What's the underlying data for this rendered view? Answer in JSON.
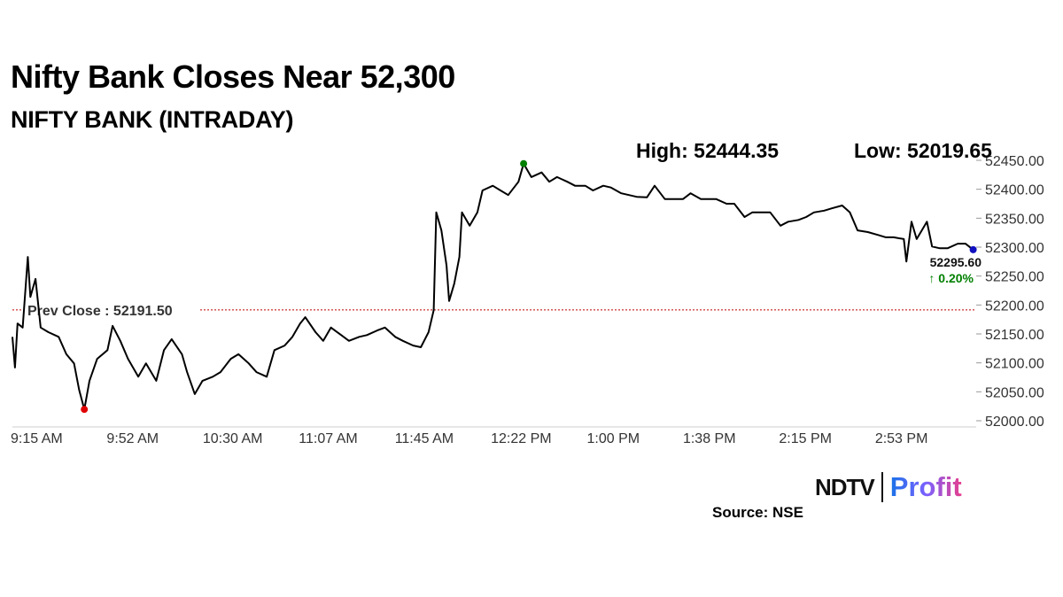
{
  "header": {
    "title": "Nifty Bank Closes Near 52,300",
    "subtitle": "NIFTY BANK (INTRADAY)",
    "high_label": "High: 52444.35",
    "low_label": "Low: 52019.65"
  },
  "footer": {
    "source": "Source: NSE",
    "logo_text_1": "NDTV",
    "logo_text_2": "Profit"
  },
  "chart_data": {
    "type": "line",
    "ylim": [
      52000,
      52450
    ],
    "y_ticks": [
      "52000.00",
      "52050.00",
      "52100.00",
      "52150.00",
      "52200.00",
      "52250.00",
      "52300.00",
      "52350.00",
      "52400.00",
      "52450.00"
    ],
    "x_ticks": [
      "9:15 AM",
      "9:52 AM",
      "10:30 AM",
      "11:07 AM",
      "11:45 AM",
      "12:22 PM",
      "1:00 PM",
      "1:38 PM",
      "2:15 PM",
      "2:53 PM"
    ],
    "grid": false,
    "y_axis_position": "right",
    "line_color": "#000000",
    "prev_close": {
      "value": 52191.5,
      "label": "Prev Close : 52191.50",
      "color": "#c00000"
    },
    "high": {
      "time": "12:34",
      "value": 52444.35,
      "color": "#008000"
    },
    "low": {
      "time": "9:43",
      "value": 52019.65,
      "color": "#e00000"
    },
    "last": {
      "value": 52295.6,
      "label": "52295.60",
      "change": "0.20%",
      "change_color": "#008000",
      "marker_color": "#1010c0"
    },
    "points": [
      [
        "9:15",
        52145
      ],
      [
        "9:16",
        52092
      ],
      [
        "9:17",
        52168
      ],
      [
        "9:19",
        52161
      ],
      [
        "9:21",
        52283
      ],
      [
        "9:22",
        52214
      ],
      [
        "9:24",
        52245
      ],
      [
        "9:26",
        52161
      ],
      [
        "9:29",
        52153
      ],
      [
        "9:33",
        52145
      ],
      [
        "9:36",
        52115
      ],
      [
        "9:39",
        52099
      ],
      [
        "9:41",
        52053
      ],
      [
        "9:43",
        52019.65
      ],
      [
        "9:45",
        52069
      ],
      [
        "9:48",
        52107
      ],
      [
        "9:52",
        52122
      ],
      [
        "9:54",
        52164
      ],
      [
        "9:57",
        52138
      ],
      [
        "10:00",
        52107
      ],
      [
        "10:04",
        52076
      ],
      [
        "10:07",
        52099
      ],
      [
        "10:11",
        52069
      ],
      [
        "10:14",
        52122
      ],
      [
        "10:17",
        52141
      ],
      [
        "10:21",
        52115
      ],
      [
        "10:23",
        52084
      ],
      [
        "10:26",
        52046
      ],
      [
        "10:29",
        52069
      ],
      [
        "10:33",
        52076
      ],
      [
        "10:36",
        52084
      ],
      [
        "10:40",
        52107
      ],
      [
        "10:43",
        52115
      ],
      [
        "10:47",
        52099
      ],
      [
        "10:50",
        52084
      ],
      [
        "10:54",
        52076
      ],
      [
        "10:57",
        52122
      ],
      [
        "11:01",
        52130
      ],
      [
        "11:04",
        52145
      ],
      [
        "11:07",
        52168
      ],
      [
        "11:09",
        52179
      ],
      [
        "11:13",
        52153
      ],
      [
        "11:16",
        52138
      ],
      [
        "11:19",
        52161
      ],
      [
        "11:23",
        52148
      ],
      [
        "11:26",
        52138
      ],
      [
        "11:30",
        52145
      ],
      [
        "11:33",
        52148
      ],
      [
        "11:37",
        52156
      ],
      [
        "11:40",
        52161
      ],
      [
        "11:44",
        52145
      ],
      [
        "11:47",
        52138
      ],
      [
        "11:51",
        52130
      ],
      [
        "11:54",
        52127
      ],
      [
        "11:57",
        52153
      ],
      [
        "11:59",
        52191
      ],
      [
        "12:00",
        52360
      ],
      [
        "12:02",
        52329
      ],
      [
        "12:04",
        52268
      ],
      [
        "12:05",
        52207
      ],
      [
        "12:07",
        52237
      ],
      [
        "12:09",
        52283
      ],
      [
        "12:10",
        52360
      ],
      [
        "12:13",
        52337
      ],
      [
        "12:16",
        52360
      ],
      [
        "12:18",
        52398
      ],
      [
        "12:22",
        52406
      ],
      [
        "12:25",
        52398
      ],
      [
        "12:28",
        52390
      ],
      [
        "12:32",
        52413
      ],
      [
        "12:34",
        52444.35
      ],
      [
        "12:37",
        52421
      ],
      [
        "12:41",
        52429
      ],
      [
        "12:44",
        52413
      ],
      [
        "12:47",
        52421
      ],
      [
        "12:51",
        52413
      ],
      [
        "12:54",
        52406
      ],
      [
        "12:58",
        52406
      ],
      [
        "13:01",
        52398
      ],
      [
        "13:05",
        52406
      ],
      [
        "13:08",
        52403
      ],
      [
        "13:12",
        52393
      ],
      [
        "13:15",
        52390
      ],
      [
        "13:18",
        52387
      ],
      [
        "13:22",
        52386
      ],
      [
        "13:25",
        52406
      ],
      [
        "13:29",
        52383
      ],
      [
        "13:32",
        52383
      ],
      [
        "13:36",
        52383
      ],
      [
        "13:39",
        52393
      ],
      [
        "13:43",
        52383
      ],
      [
        "13:46",
        52383
      ],
      [
        "13:49",
        52383
      ],
      [
        "13:53",
        52375
      ],
      [
        "13:56",
        52375
      ],
      [
        "14:00",
        52352
      ],
      [
        "14:03",
        52360
      ],
      [
        "14:07",
        52360
      ],
      [
        "14:10",
        52360
      ],
      [
        "14:14",
        52337
      ],
      [
        "14:17",
        52344
      ],
      [
        "14:21",
        52347
      ],
      [
        "14:24",
        52352
      ],
      [
        "14:27",
        52360
      ],
      [
        "14:31",
        52363
      ],
      [
        "14:34",
        52367
      ],
      [
        "14:38",
        52372
      ],
      [
        "14:41",
        52360
      ],
      [
        "14:44",
        52329
      ],
      [
        "14:48",
        52326
      ],
      [
        "14:52",
        52321
      ],
      [
        "14:55",
        52317
      ],
      [
        "14:58",
        52317
      ],
      [
        "15:02",
        52314
      ],
      [
        "15:03",
        52275
      ],
      [
        "15:05",
        52344
      ],
      [
        "15:07",
        52314
      ],
      [
        "15:09",
        52329
      ],
      [
        "15:11",
        52344
      ],
      [
        "15:13",
        52301
      ],
      [
        "15:16",
        52298
      ],
      [
        "15:19",
        52298
      ],
      [
        "15:23",
        52306
      ],
      [
        "15:26",
        52306
      ],
      [
        "15:29",
        52295.6
      ]
    ]
  }
}
